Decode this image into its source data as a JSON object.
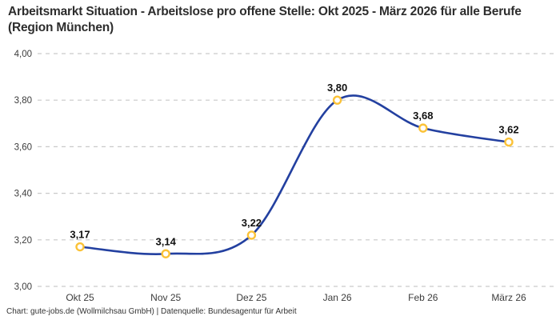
{
  "title": "Arbeitsmarkt Situation - Arbeitslose pro offene Stelle: Okt 2025 - März 2026 für alle Berufe (Region München)",
  "footer": "Chart: gute-jobs.de (Wollmilchsau GmbH) | Datenquelle: Bundesagentur für Arbeit",
  "colors": {
    "line": "#2340a0",
    "marker_ring": "#fbc237",
    "marker_fill": "#ffffff",
    "grid": "#c9c9c9",
    "title_text": "#2d2d2d",
    "axis_text": "#3c3c3c",
    "value_label_text": "#111111",
    "background": "#ffffff"
  },
  "chart_data": {
    "type": "line",
    "title": "Arbeitsmarkt Situation - Arbeitslose pro offene Stelle: Okt 2025 - März 2026 für alle Berufe (Region München)",
    "categories": [
      "Okt 25",
      "Nov 25",
      "Dez 25",
      "Jan 26",
      "Feb 26",
      "März 26"
    ],
    "values": [
      3.17,
      3.14,
      3.22,
      3.8,
      3.68,
      3.62
    ],
    "value_labels": [
      "3,17",
      "3,14",
      "3,22",
      "3,80",
      "3,68",
      "3,62"
    ],
    "y_ticks": [
      {
        "value": 4.0,
        "label": "4,00"
      },
      {
        "value": 3.8,
        "label": "3,80"
      },
      {
        "value": 3.6,
        "label": "3,60"
      },
      {
        "value": 3.4,
        "label": "3,40"
      },
      {
        "value": 3.2,
        "label": "3,20"
      },
      {
        "value": 3.0,
        "label": "3,00"
      }
    ],
    "ylim": [
      3.0,
      4.0
    ],
    "xlabel": "",
    "ylabel": "",
    "grid": "horizontal-dashed",
    "legend": "none",
    "marker_style": "open-circle-gold",
    "line_style": "smooth-navy",
    "source": "Chart: gute-jobs.de (Wollmilchsau GmbH) | Datenquelle: Bundesagentur für Arbeit"
  }
}
